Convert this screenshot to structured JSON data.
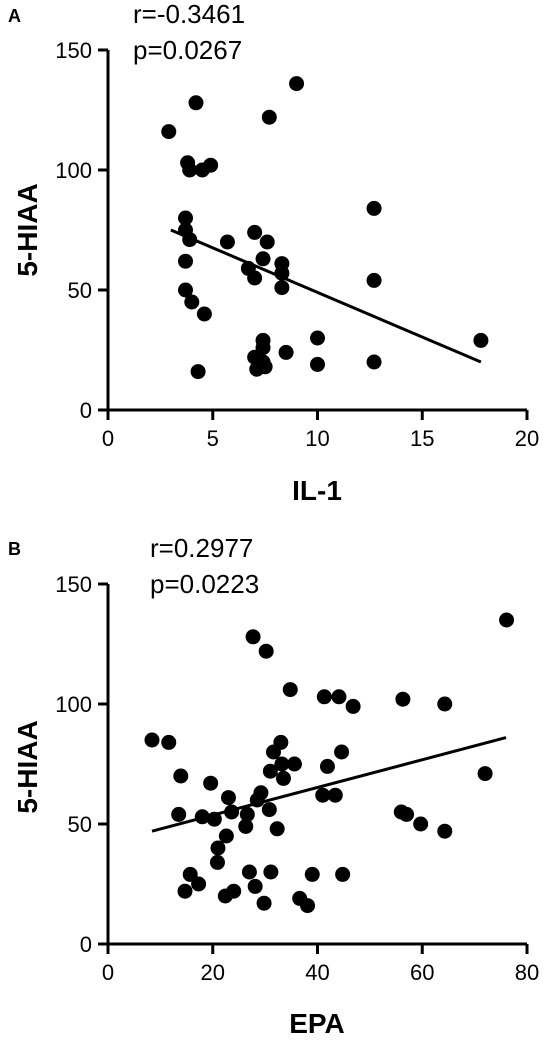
{
  "chart_data": [
    {
      "type": "scatter",
      "panel_label": "A",
      "annotation": {
        "r": "r=-0.3461",
        "p": "p=0.0267"
      },
      "xlabel": "IL-1",
      "ylabel": "5-HIAA",
      "xlim": [
        0,
        20
      ],
      "ylim": [
        0,
        150
      ],
      "x_ticks": [
        0,
        5,
        10,
        15,
        20
      ],
      "y_ticks": [
        0,
        50,
        100,
        150
      ],
      "points": [
        {
          "x": 2.9,
          "y": 116
        },
        {
          "x": 4.2,
          "y": 128
        },
        {
          "x": 3.8,
          "y": 103
        },
        {
          "x": 3.9,
          "y": 100
        },
        {
          "x": 4.5,
          "y": 100
        },
        {
          "x": 4.9,
          "y": 102
        },
        {
          "x": 3.7,
          "y": 80
        },
        {
          "x": 3.7,
          "y": 75
        },
        {
          "x": 3.9,
          "y": 71
        },
        {
          "x": 3.7,
          "y": 62
        },
        {
          "x": 3.7,
          "y": 50
        },
        {
          "x": 4.0,
          "y": 45
        },
        {
          "x": 4.6,
          "y": 40
        },
        {
          "x": 4.3,
          "y": 16
        },
        {
          "x": 5.7,
          "y": 70
        },
        {
          "x": 7.0,
          "y": 74
        },
        {
          "x": 7.6,
          "y": 70
        },
        {
          "x": 6.7,
          "y": 59
        },
        {
          "x": 7.0,
          "y": 55
        },
        {
          "x": 7.4,
          "y": 63
        },
        {
          "x": 7.7,
          "y": 122
        },
        {
          "x": 8.3,
          "y": 61
        },
        {
          "x": 8.3,
          "y": 57
        },
        {
          "x": 8.3,
          "y": 51
        },
        {
          "x": 9.0,
          "y": 136
        },
        {
          "x": 7.4,
          "y": 29
        },
        {
          "x": 7.4,
          "y": 26
        },
        {
          "x": 7.0,
          "y": 22
        },
        {
          "x": 7.4,
          "y": 20
        },
        {
          "x": 7.1,
          "y": 17
        },
        {
          "x": 7.5,
          "y": 18
        },
        {
          "x": 8.5,
          "y": 24
        },
        {
          "x": 10.0,
          "y": 30
        },
        {
          "x": 10.0,
          "y": 19
        },
        {
          "x": 12.7,
          "y": 84
        },
        {
          "x": 12.7,
          "y": 54
        },
        {
          "x": 12.7,
          "y": 20
        },
        {
          "x": 17.8,
          "y": 29
        }
      ],
      "regression": {
        "x1": 3.0,
        "y1": 75,
        "x2": 17.8,
        "y2": 20
      }
    },
    {
      "type": "scatter",
      "panel_label": "B",
      "annotation": {
        "r": "r=0.2977",
        "p": "p=0.0223"
      },
      "xlabel": "EPA",
      "ylabel": "5-HIAA",
      "xlim": [
        0,
        80
      ],
      "ylim": [
        0,
        150
      ],
      "x_ticks": [
        0,
        20,
        40,
        60,
        80
      ],
      "y_ticks": [
        0,
        50,
        100,
        150
      ],
      "points": [
        {
          "x": 8.4,
          "y": 85
        },
        {
          "x": 11.6,
          "y": 84
        },
        {
          "x": 13.9,
          "y": 70
        },
        {
          "x": 13.5,
          "y": 54
        },
        {
          "x": 14.7,
          "y": 22
        },
        {
          "x": 15.7,
          "y": 29
        },
        {
          "x": 17.3,
          "y": 25
        },
        {
          "x": 18.0,
          "y": 53
        },
        {
          "x": 19.6,
          "y": 67
        },
        {
          "x": 20.3,
          "y": 52
        },
        {
          "x": 21.0,
          "y": 40
        },
        {
          "x": 20.9,
          "y": 34
        },
        {
          "x": 22.6,
          "y": 45
        },
        {
          "x": 23.0,
          "y": 61
        },
        {
          "x": 23.6,
          "y": 55
        },
        {
          "x": 22.4,
          "y": 20
        },
        {
          "x": 24.0,
          "y": 22
        },
        {
          "x": 26.3,
          "y": 49
        },
        {
          "x": 26.6,
          "y": 54
        },
        {
          "x": 27.7,
          "y": 128
        },
        {
          "x": 30.2,
          "y": 122
        },
        {
          "x": 28.5,
          "y": 60
        },
        {
          "x": 29.2,
          "y": 63
        },
        {
          "x": 27.0,
          "y": 30
        },
        {
          "x": 28.1,
          "y": 24
        },
        {
          "x": 29.8,
          "y": 17
        },
        {
          "x": 31.1,
          "y": 30
        },
        {
          "x": 30.8,
          "y": 56
        },
        {
          "x": 31.0,
          "y": 72
        },
        {
          "x": 31.6,
          "y": 80
        },
        {
          "x": 32.3,
          "y": 48
        },
        {
          "x": 33.0,
          "y": 84
        },
        {
          "x": 33.2,
          "y": 75
        },
        {
          "x": 33.5,
          "y": 69
        },
        {
          "x": 34.8,
          "y": 106
        },
        {
          "x": 35.6,
          "y": 75
        },
        {
          "x": 36.6,
          "y": 19
        },
        {
          "x": 38.1,
          "y": 16
        },
        {
          "x": 39.0,
          "y": 29
        },
        {
          "x": 41.3,
          "y": 103
        },
        {
          "x": 41.0,
          "y": 62
        },
        {
          "x": 41.9,
          "y": 74
        },
        {
          "x": 43.4,
          "y": 62
        },
        {
          "x": 44.1,
          "y": 103
        },
        {
          "x": 44.6,
          "y": 80
        },
        {
          "x": 44.8,
          "y": 29
        },
        {
          "x": 46.8,
          "y": 99
        },
        {
          "x": 56.3,
          "y": 102
        },
        {
          "x": 56.0,
          "y": 55
        },
        {
          "x": 57.0,
          "y": 54
        },
        {
          "x": 59.7,
          "y": 50
        },
        {
          "x": 64.3,
          "y": 100
        },
        {
          "x": 64.3,
          "y": 47
        },
        {
          "x": 72.0,
          "y": 71
        },
        {
          "x": 76.1,
          "y": 135
        }
      ],
      "regression": {
        "x1": 8.4,
        "y1": 47,
        "x2": 76.0,
        "y2": 86
      }
    }
  ]
}
